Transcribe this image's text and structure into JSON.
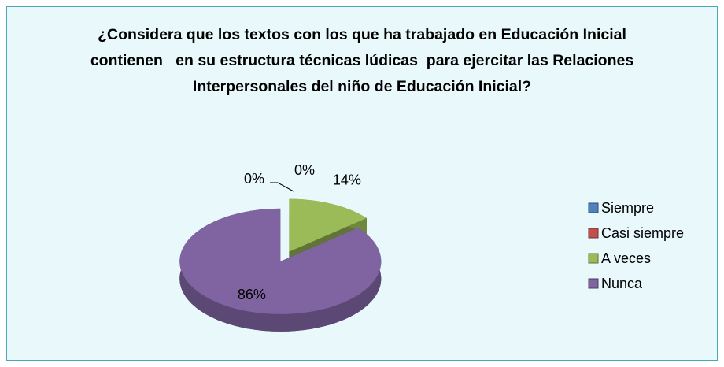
{
  "chart_data": {
    "type": "pie",
    "title": "¿Considera que los textos con los que ha trabajado en Educación Inicial contienen   en su estructura técnicas lúdicas  para ejercitar las Relaciones Interpersonales del niño de Educación Inicial?",
    "categories": [
      "Siempre",
      "Casi siempre",
      "A veces",
      "Nunca"
    ],
    "values": [
      0,
      0,
      14,
      86
    ],
    "value_labels": [
      "0%",
      "0%",
      "14%",
      "86%"
    ],
    "colors": [
      "#4f81bd",
      "#c0504d",
      "#9bbb59",
      "#8064a2"
    ],
    "legend": "right"
  }
}
